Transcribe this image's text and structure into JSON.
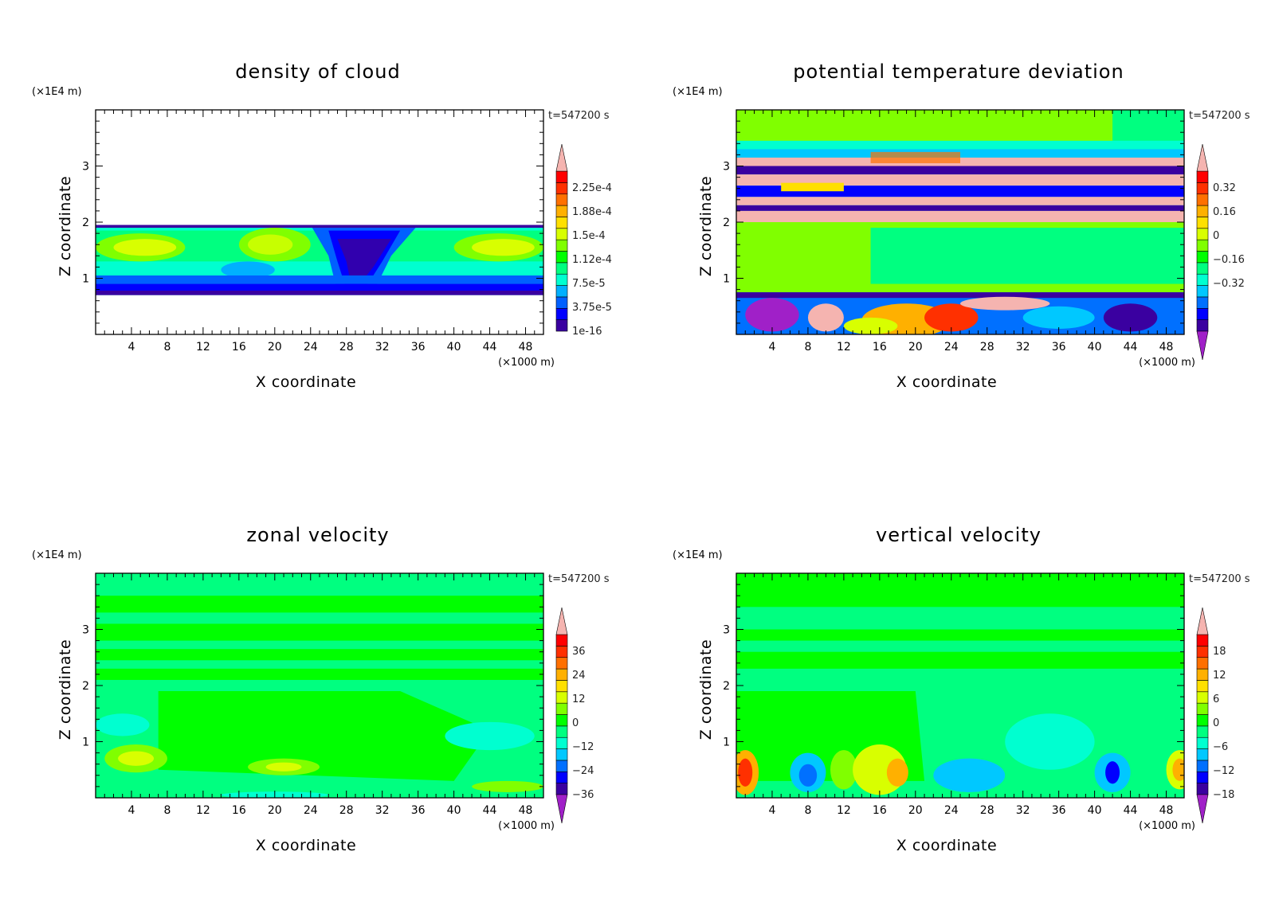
{
  "chart_data": [
    {
      "type": "heatmap",
      "title": "density of cloud",
      "xlabel": "X coordinate",
      "ylabel": "Z coordinate",
      "x_unit": "(×1000 m)",
      "y_unit": "(×1E4 m)",
      "time_label": "t=547200 s",
      "xlim": [
        0,
        50
      ],
      "ylim": [
        0,
        4
      ],
      "x_ticks": [
        4,
        8,
        12,
        16,
        20,
        24,
        28,
        32,
        36,
        40,
        44,
        48
      ],
      "y_ticks": [
        1,
        2,
        3
      ],
      "colorbar": {
        "labels": [
          "2.25e-4",
          "1.88e-4",
          "1.5e-4",
          "1.12e-4",
          "7.5e-5",
          "3.75e-5",
          "1e-16"
        ],
        "colors": [
          "#7b00c8",
          "#3a00a0",
          "#0000ff",
          "#0060ff",
          "#00b0ff",
          "#00ffd0",
          "#00ff80",
          "#00ff00",
          "#80ff00",
          "#d8ff00",
          "#ffe000",
          "#ffb000",
          "#ff7000",
          "#ff3000",
          "#ff0000",
          "#f5b4b0"
        ]
      }
    },
    {
      "type": "heatmap",
      "title": "potential temperature deviation",
      "xlabel": "X coordinate",
      "ylabel": "Z coordinate",
      "x_unit": "(×1000 m)",
      "y_unit": "(×1E4 m)",
      "time_label": "t=547200 s",
      "xlim": [
        0,
        50
      ],
      "ylim": [
        0,
        4
      ],
      "x_ticks": [
        4,
        8,
        12,
        16,
        20,
        24,
        28,
        32,
        36,
        40,
        44,
        48
      ],
      "y_ticks": [
        1,
        2,
        3
      ],
      "colorbar": {
        "labels": [
          "0.32",
          "0.16",
          "0",
          "−0.16",
          "−0.32"
        ],
        "colors": [
          "#a020c8",
          "#3a00a0",
          "#0000ff",
          "#0070ff",
          "#00c8ff",
          "#00ffd0",
          "#00ff80",
          "#00ff00",
          "#80ff00",
          "#d8ff00",
          "#ffe000",
          "#ffb000",
          "#ff7000",
          "#ff3000",
          "#ff0000",
          "#f5b4b0"
        ]
      }
    },
    {
      "type": "heatmap",
      "title": "zonal velocity",
      "xlabel": "X coordinate",
      "ylabel": "Z coordinate",
      "x_unit": "(×1000 m)",
      "y_unit": "(×1E4 m)",
      "time_label": "t=547200 s",
      "xlim": [
        0,
        50
      ],
      "ylim": [
        0,
        4
      ],
      "x_ticks": [
        4,
        8,
        12,
        16,
        20,
        24,
        28,
        32,
        36,
        40,
        44,
        48
      ],
      "y_ticks": [
        1,
        2,
        3
      ],
      "colorbar": {
        "labels": [
          "36",
          "24",
          "12",
          "0",
          "−12",
          "−24",
          "−36"
        ],
        "colors": [
          "#a020c8",
          "#3a00a0",
          "#0000ff",
          "#0070ff",
          "#00c8ff",
          "#00ffd0",
          "#00ff80",
          "#00ff00",
          "#80ff00",
          "#d8ff00",
          "#ffe000",
          "#ffb000",
          "#ff7000",
          "#ff3000",
          "#ff0000",
          "#f5b4b0"
        ]
      }
    },
    {
      "type": "heatmap",
      "title": "vertical velocity",
      "xlabel": "X coordinate",
      "ylabel": "Z coordinate",
      "x_unit": "(×1000 m)",
      "y_unit": "(×1E4 m)",
      "time_label": "t=547200 s",
      "xlim": [
        0,
        50
      ],
      "ylim": [
        0,
        4
      ],
      "x_ticks": [
        4,
        8,
        12,
        16,
        20,
        24,
        28,
        32,
        36,
        40,
        44,
        48
      ],
      "y_ticks": [
        1,
        2,
        3
      ],
      "colorbar": {
        "labels": [
          "18",
          "12",
          "6",
          "0",
          "−6",
          "−12",
          "−18"
        ],
        "colors": [
          "#a020c8",
          "#3a00a0",
          "#0000ff",
          "#0070ff",
          "#00c8ff",
          "#00ffd0",
          "#00ff80",
          "#00ff00",
          "#80ff00",
          "#d8ff00",
          "#ffe000",
          "#ffb000",
          "#ff7000",
          "#ff3000",
          "#ff0000",
          "#f5b4b0"
        ]
      }
    }
  ]
}
